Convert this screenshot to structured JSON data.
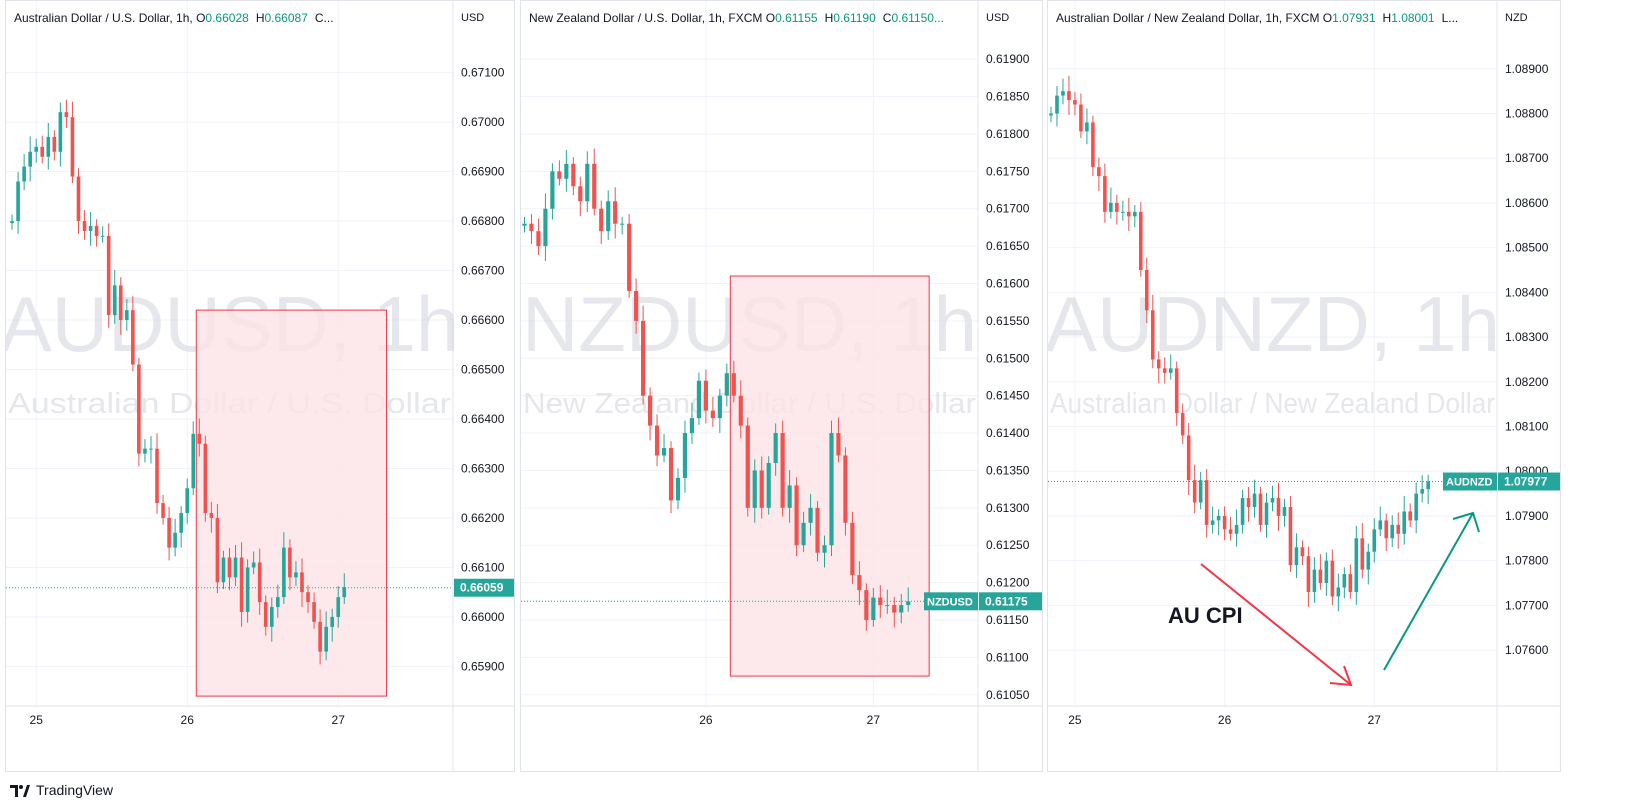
{
  "app": {
    "brand": "TradingView"
  },
  "chart_data": [
    {
      "type": "candlestick",
      "symbol": "AUDUSD",
      "watermark_symbol": "AUDUSD, 1h",
      "watermark_name": "Australian Dollar / U.S. Dollar",
      "header": "Australian Dollar / U.S. Dollar, 1h,",
      "ohlc": {
        "o_label": "O",
        "o": "0.66028",
        "h_label": "H",
        "h": "0.66087",
        "c_label": "C..."
      },
      "currency": "USD",
      "ylim": [
        0.6582,
        0.6718
      ],
      "y_ticks": [
        "0.67100",
        "0.67000",
        "0.66900",
        "0.66800",
        "0.66700",
        "0.66600",
        "0.66500",
        "0.66400",
        "0.66300",
        "0.66200",
        "0.66100",
        "0.66000",
        "0.65900"
      ],
      "x_ticks": [
        {
          "label": "25",
          "t": 4
        },
        {
          "label": "26",
          "t": 29
        },
        {
          "label": "27",
          "t": 54
        }
      ],
      "last_price": "0.66059",
      "last_value": 0.66059,
      "price_label_symbol": "",
      "highlight": {
        "t_start": 30.5,
        "t_end": 62,
        "y_top": 0.6662,
        "y_bottom": 0.6584
      },
      "t_range": [
        -1,
        73
      ],
      "start_t": 0,
      "closes": [
        0.668,
        0.6688,
        0.6691,
        0.6694,
        0.6695,
        0.6693,
        0.6697,
        0.6694,
        0.6702,
        0.6701,
        0.6689,
        0.668,
        0.6678,
        0.6679,
        0.6677,
        0.6677,
        0.6661,
        0.6667,
        0.666,
        0.6662,
        0.6651,
        0.6633,
        0.6634,
        0.6634,
        0.6623,
        0.662,
        0.6614,
        0.6617,
        0.6621,
        0.6626,
        0.6637,
        0.6635,
        0.6621,
        0.662,
        0.6607,
        0.6612,
        0.6608,
        0.6612,
        0.6601,
        0.661,
        0.6611,
        0.6603,
        0.6598,
        0.6602,
        0.6604,
        0.6614,
        0.6608,
        0.6609,
        0.6605,
        0.6603,
        0.6599,
        0.6593,
        0.6598,
        0.66,
        0.6604,
        0.6606
      ],
      "annotations": []
    },
    {
      "type": "candlestick",
      "symbol": "NZDUSD",
      "watermark_symbol": "NZDUSD, 1h",
      "watermark_name": "New Zealand Dollar / U.S. Dollar",
      "header": "New Zealand Dollar / U.S. Dollar, 1h, FXCM",
      "ohlc": {
        "o_label": "O",
        "o": "0.61155",
        "h_label": "H",
        "h": "0.61190",
        "c_label": "C",
        "c": "0.61150..."
      },
      "currency": "USD",
      "ylim": [
        0.61035,
        0.61935
      ],
      "y_ticks": [
        "0.61900",
        "0.61850",
        "0.61800",
        "0.61750",
        "0.61700",
        "0.61650",
        "0.61600",
        "0.61550",
        "0.61500",
        "0.61450",
        "0.61400",
        "0.61350",
        "0.61300",
        "0.61250",
        "0.61200",
        "0.61150",
        "0.61100",
        "0.61050"
      ],
      "x_ticks": [
        {
          "label": "26",
          "t": 26
        },
        {
          "label": "27",
          "t": 50
        }
      ],
      "last_price": "0.61175",
      "last_value": 0.61175,
      "price_label_symbol": "NZDUSD",
      "highlight": {
        "t_start": 29.5,
        "t_end": 58,
        "y_top": 0.6161,
        "y_bottom": 0.61075
      },
      "t_range": [
        -0.5,
        65
      ],
      "start_t": 0,
      "closes": [
        0.6168,
        0.6167,
        0.6165,
        0.617,
        0.6175,
        0.6174,
        0.6176,
        0.6173,
        0.6171,
        0.6176,
        0.617,
        0.6167,
        0.6171,
        0.6168,
        0.6168,
        0.6159,
        0.6155,
        0.6145,
        0.6141,
        0.6137,
        0.6138,
        0.6131,
        0.6134,
        0.614,
        0.6142,
        0.6147,
        0.6143,
        0.6142,
        0.6145,
        0.6148,
        0.6145,
        0.6141,
        0.613,
        0.6135,
        0.613,
        0.6136,
        0.614,
        0.613,
        0.6133,
        0.6125,
        0.6128,
        0.613,
        0.6124,
        0.6125,
        0.614,
        0.6137,
        0.6128,
        0.6121,
        0.6119,
        0.6115,
        0.6118,
        0.6117,
        0.6117,
        0.6116,
        0.6117,
        0.61175
      ],
      "annotations": []
    },
    {
      "type": "candlestick",
      "symbol": "AUDNZD",
      "watermark_symbol": "AUDNZD, 1h",
      "watermark_name": "Australian Dollar / New Zealand Dollar",
      "header": "Australian Dollar / New Zealand Dollar, 1h, FXCM",
      "ohlc": {
        "o_label": "O",
        "o": "1.07931",
        "h_label": "H",
        "h": "1.08001",
        "c_label": "L..."
      },
      "currency": "NZD",
      "ylim": [
        1.07475,
        1.0898
      ],
      "y_ticks": [
        "1.08900",
        "1.08800",
        "1.08700",
        "1.08600",
        "1.08500",
        "1.08400",
        "1.08300",
        "1.08200",
        "1.08100",
        "1.08000",
        "1.07900",
        "1.07800",
        "1.07700",
        "1.07600"
      ],
      "x_ticks": [
        {
          "label": "25",
          "t": 4
        },
        {
          "label": "26",
          "t": 29
        },
        {
          "label": "27",
          "t": 54
        }
      ],
      "last_price": "1.07977",
      "last_value": 1.07977,
      "price_label_symbol": "AUDNZD",
      "highlight": null,
      "t_range": [
        -0.5,
        74.5
      ],
      "start_t": 0,
      "closes": [
        1.088,
        1.0884,
        1.0885,
        1.0883,
        1.0882,
        1.0876,
        1.0878,
        1.0868,
        1.0866,
        1.0858,
        1.086,
        1.0858,
        1.0858,
        1.0857,
        1.0858,
        1.0845,
        1.0836,
        1.0825,
        1.0823,
        1.0822,
        1.0823,
        1.0813,
        1.0808,
        1.0798,
        1.0793,
        1.0798,
        1.0788,
        1.0789,
        1.079,
        1.0787,
        1.0786,
        1.0788,
        1.0794,
        1.0792,
        1.0795,
        1.0788,
        1.0793,
        1.0794,
        1.079,
        1.0792,
        1.0779,
        1.0783,
        1.0781,
        1.0773,
        1.0778,
        1.0775,
        1.078,
        1.0772,
        1.0774,
        1.0777,
        1.0773,
        1.0785,
        1.0778,
        1.0782,
        1.0787,
        1.0789,
        1.0785,
        1.0788,
        1.0786,
        1.0791,
        1.0789,
        1.0795,
        1.0796,
        1.07977
      ],
      "annotations": [
        {
          "kind": "text",
          "text": "AU CPI"
        },
        {
          "kind": "arrow-down",
          "color": "#f23645"
        },
        {
          "kind": "arrow-up",
          "color": "#089981"
        }
      ]
    }
  ],
  "colors": {
    "up": "#26a69a",
    "down": "#ef5350",
    "grid": "#f0f3fa",
    "axis_text": "#131722",
    "header_text": "#131722",
    "green_text": "#089981",
    "highlight_fill": "#fce4e6",
    "highlight_stroke": "#f23645",
    "watermark": "#d1d4dc"
  }
}
